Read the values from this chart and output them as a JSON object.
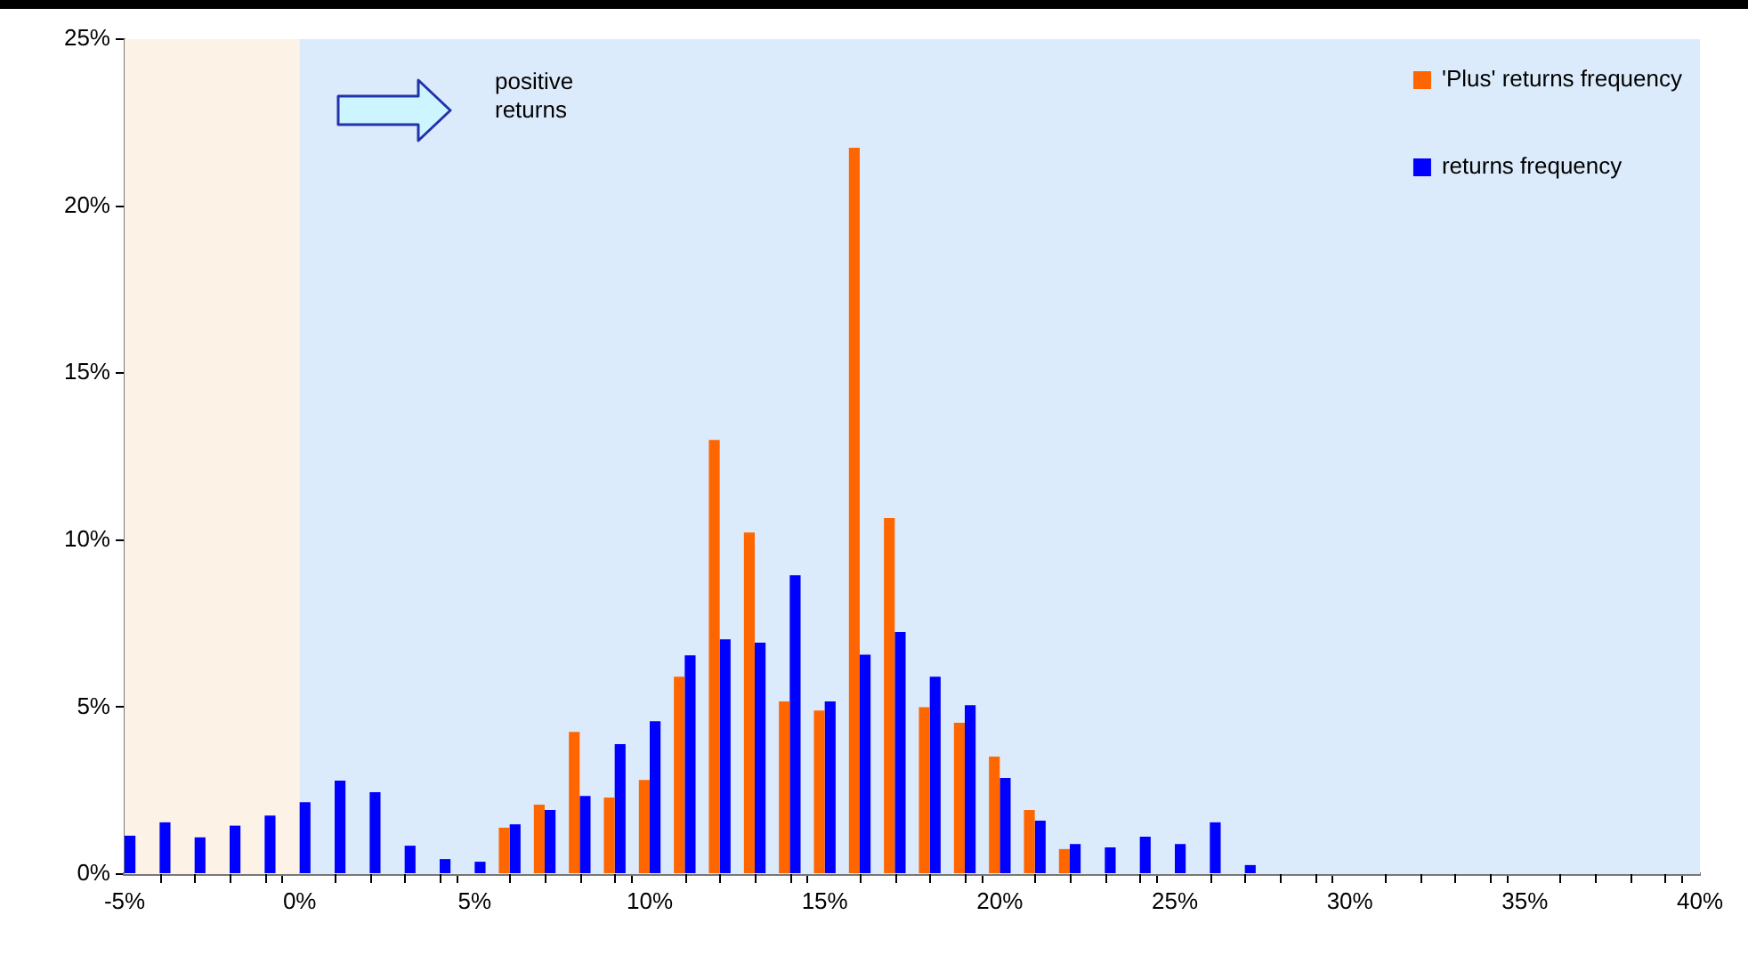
{
  "chart_data": {
    "type": "bar",
    "x": [
      -5,
      -4,
      -3,
      -2,
      -1,
      0,
      1,
      2,
      3,
      4,
      5,
      6,
      7,
      8,
      9,
      10,
      11,
      12,
      13,
      14,
      15,
      16,
      17,
      18,
      19,
      20,
      21,
      22,
      23,
      24,
      25,
      26,
      27
    ],
    "series": [
      {
        "name": "'Plus' returns frequency",
        "color": "#ff6600",
        "values": [
          null,
          null,
          null,
          null,
          null,
          null,
          null,
          null,
          null,
          null,
          null,
          1.39,
          2.08,
          4.26,
          2.29,
          2.82,
          5.91,
          13.0,
          10.23,
          5.17,
          4.9,
          21.75,
          10.66,
          5.0,
          4.53,
          3.52,
          1.92,
          0.75,
          null,
          null,
          null,
          null,
          null
        ]
      },
      {
        "name": "returns frequency",
        "color": "#0000ff",
        "values": [
          1.15,
          1.55,
          1.1,
          1.45,
          1.75,
          2.15,
          2.8,
          2.45,
          0.85,
          0.45,
          0.37,
          1.49,
          1.92,
          2.34,
          3.89,
          4.58,
          6.55,
          7.03,
          6.93,
          8.95,
          5.17,
          6.57,
          7.25,
          5.91,
          5.06,
          2.88,
          1.6,
          0.9,
          0.8,
          1.12,
          0.9,
          1.55,
          0.27
        ]
      }
    ],
    "xlim": [
      -5,
      40
    ],
    "xticks": [
      {
        "value": -5,
        "label": "-5%"
      },
      {
        "value": -4,
        "label": null
      },
      {
        "value": -3,
        "label": null
      },
      {
        "value": -2,
        "label": null
      },
      {
        "value": -1,
        "label": null
      },
      {
        "value": 0,
        "label": "0%"
      },
      {
        "value": 1,
        "label": null
      },
      {
        "value": 2,
        "label": null
      },
      {
        "value": 3,
        "label": null
      },
      {
        "value": 4,
        "label": null
      },
      {
        "value": 5,
        "label": "5%"
      },
      {
        "value": 6,
        "label": null
      },
      {
        "value": 7,
        "label": null
      },
      {
        "value": 8,
        "label": null
      },
      {
        "value": 9,
        "label": null
      },
      {
        "value": 10,
        "label": "10%"
      },
      {
        "value": 11,
        "label": null
      },
      {
        "value": 12,
        "label": null
      },
      {
        "value": 13,
        "label": null
      },
      {
        "value": 14,
        "label": null
      },
      {
        "value": 15,
        "label": "15%"
      },
      {
        "value": 16,
        "label": null
      },
      {
        "value": 17,
        "label": null
      },
      {
        "value": 18,
        "label": null
      },
      {
        "value": 19,
        "label": null
      },
      {
        "value": 20,
        "label": "20%"
      },
      {
        "value": 21,
        "label": null
      },
      {
        "value": 22,
        "label": null
      },
      {
        "value": 23,
        "label": null
      },
      {
        "value": 24,
        "label": null
      },
      {
        "value": 25,
        "label": "25%"
      },
      {
        "value": 26,
        "label": null
      },
      {
        "value": 27,
        "label": null
      },
      {
        "value": 28,
        "label": null
      },
      {
        "value": 29,
        "label": null
      },
      {
        "value": 30,
        "label": "30%"
      },
      {
        "value": 31,
        "label": null
      },
      {
        "value": 32,
        "label": null
      },
      {
        "value": 33,
        "label": null
      },
      {
        "value": 34,
        "label": null
      },
      {
        "value": 35,
        "label": "35%"
      },
      {
        "value": 36,
        "label": null
      },
      {
        "value": 37,
        "label": null
      },
      {
        "value": 38,
        "label": null
      },
      {
        "value": 39,
        "label": null
      },
      {
        "value": 40,
        "label": "40%"
      }
    ],
    "ylim": [
      0,
      25
    ],
    "yticks": [
      {
        "value": 0,
        "label": "0%"
      },
      {
        "value": 5,
        "label": "5%"
      },
      {
        "value": 10,
        "label": "10%"
      },
      {
        "value": 15,
        "label": "15%"
      },
      {
        "value": 20,
        "label": "20%"
      },
      {
        "value": 25,
        "label": "25%"
      }
    ],
    "bands": [
      {
        "axis": "x",
        "from": -5,
        "to": 0,
        "color": "#fdf2e6"
      },
      {
        "axis": "x",
        "from": 0,
        "to": 40,
        "color": "#dcebfb"
      }
    ],
    "annotations": [
      "positive returns"
    ],
    "legend": "top right",
    "grid": false
  }
}
